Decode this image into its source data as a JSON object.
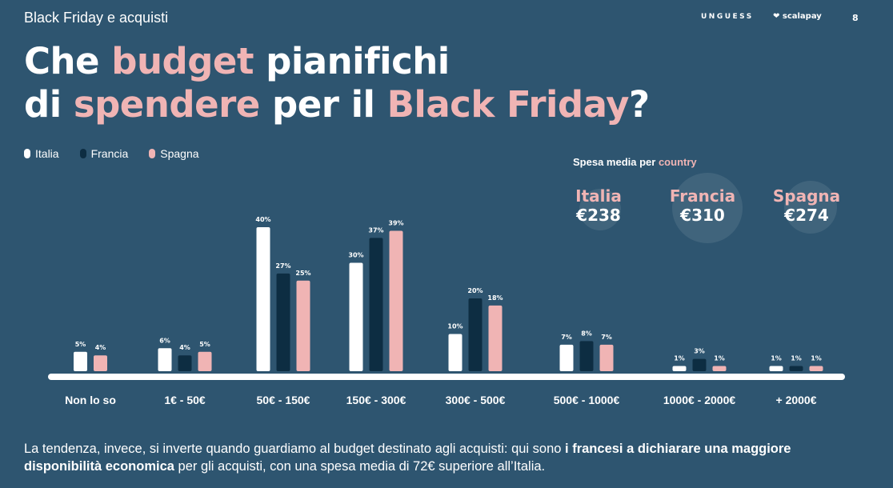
{
  "header": {
    "section_title": "Black Friday e acquisti",
    "logo_unguess": "UNGUESS",
    "logo_scalapay": "❤ scalapay",
    "page_number": "8"
  },
  "headline": {
    "line1_a": "Che ",
    "line1_b": "budget",
    "line1_c": " pianifichi",
    "line2_a": "di ",
    "line2_b": "spendere",
    "line2_c": " per il ",
    "line2_d": "Black Friday",
    "line2_e": "?"
  },
  "legend": [
    {
      "label": "Italia",
      "color": "#ffffff"
    },
    {
      "label": "Francia",
      "color": "#0d2d42"
    },
    {
      "label": "Spagna",
      "color": "#f0b4b4"
    }
  ],
  "average_spend": {
    "title_a": "Spesa media per ",
    "title_b": "country",
    "items": [
      {
        "country": "Italia",
        "value": "€238"
      },
      {
        "country": "Francia",
        "value": "€310"
      },
      {
        "country": "Spagna",
        "value": "€274"
      }
    ]
  },
  "chart_data": {
    "type": "bar",
    "categories": [
      "Non lo so",
      "1€ - 50€",
      "50€ - 150€",
      "150€ - 300€",
      "300€ - 500€",
      "500€ - 1000€",
      "1000€ - 2000€",
      "+ 2000€"
    ],
    "series": [
      {
        "name": "Italia",
        "color": "#ffffff",
        "values": [
          5,
          6,
          40,
          30,
          10,
          7,
          1,
          1
        ]
      },
      {
        "name": "Francia",
        "color": "#0d2d42",
        "values": [
          null,
          4,
          27,
          37,
          20,
          8,
          3,
          1
        ]
      },
      {
        "name": "Spagna",
        "color": "#f0b4b4",
        "values": [
          4,
          5,
          25,
          39,
          18,
          7,
          1,
          1
        ]
      }
    ],
    "value_suffix": "%",
    "ylim": [
      0,
      40
    ]
  },
  "footer": {
    "text_a": "La tendenza, invece, si inverte quando guardiamo al budget destinato agli acquisti: qui sono ",
    "text_b": "i francesi a dichiarare una maggiore disponibilità economica",
    "text_c": " per gli acquisti, con una spesa media di 72€ superiore all’Italia."
  }
}
